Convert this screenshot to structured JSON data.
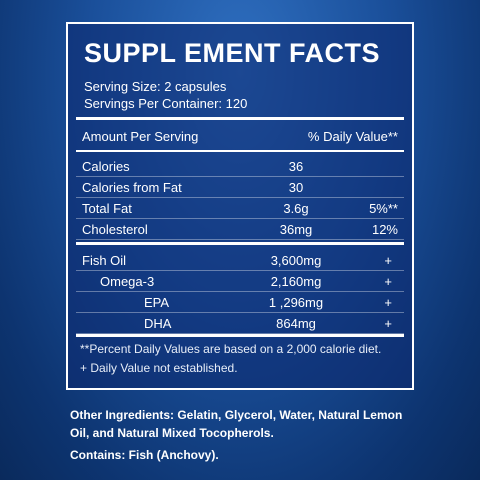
{
  "panel": {
    "title": "SUPPL EMENT FACTS",
    "serving_size": "Serving Size: 2 capsules",
    "servings_per_container": "Servings Per Container: 120",
    "header": [
      "Amount Per Serving",
      "% Daily Value**"
    ],
    "rows": [
      [
        "Calories",
        "36"
      ],
      [
        "Calories from Fat",
        "30"
      ],
      [
        "Total Fat",
        "3.6g",
        "5%**"
      ],
      [
        "Cholesterol",
        "36mg",
        "12%"
      ]
    ],
    "oils": [
      [
        "Fish Oil",
        "3,600mg",
        "+"
      ],
      [
        "Omega-3",
        "2,160mg",
        "+"
      ],
      [
        "EPA",
        "1 ,296mg",
        "+"
      ],
      [
        "DHA",
        "864mg",
        "+"
      ]
    ],
    "footnotes": [
      "**Percent Daily Values are based on a 2,000 calorie diet.",
      "+ Daily Value not established."
    ]
  },
  "other_ingredients": "Other Ingredients:  Gelatin, Glycerol, Water, Natural Lemon Oil, and Natural Mixed Tocopherols.",
  "contains": "Contains: Fish (Anchovy)."
}
